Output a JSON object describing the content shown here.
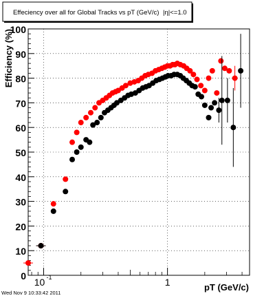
{
  "chart_data": {
    "type": "scatter",
    "title": "Effeciency over all for Global Tracks vs pT (GeV/c)",
    "title_suffix": "|η|<=1.0",
    "xlabel": "pT (GeV/c)",
    "ylabel": "Efficiency (%)",
    "x_scale": "log",
    "xlim": [
      0.075,
      4.6
    ],
    "ylim": [
      0,
      100
    ],
    "grid": true,
    "y_ticks": [
      {
        "v": 0,
        "label": "0"
      },
      {
        "v": 10,
        "label": "10"
      },
      {
        "v": 20,
        "label": "20"
      },
      {
        "v": 30,
        "label": "30"
      },
      {
        "v": 40,
        "label": "40"
      },
      {
        "v": 50,
        "label": "50"
      },
      {
        "v": 60,
        "label": "60"
      },
      {
        "v": 70,
        "label": "70"
      },
      {
        "v": 80,
        "label": "80"
      },
      {
        "v": 90,
        "label": "90"
      },
      {
        "v": 100,
        "label": "100"
      }
    ],
    "x_tick_labels": [
      {
        "v": 0.1,
        "base": "10",
        "exp": "-1"
      },
      {
        "v": 1,
        "base": "1",
        "exp": ""
      }
    ],
    "series": [
      {
        "color": "#ff0000",
        "points": [
          [
            0.075,
            5
          ],
          [
            0.095,
            12
          ],
          [
            0.12,
            29
          ],
          [
            0.15,
            39
          ],
          [
            0.17,
            54
          ],
          [
            0.185,
            58
          ],
          [
            0.2,
            62
          ],
          [
            0.22,
            64
          ],
          [
            0.24,
            66
          ],
          [
            0.26,
            68
          ],
          [
            0.28,
            70
          ],
          [
            0.3,
            71
          ],
          [
            0.32,
            72
          ],
          [
            0.34,
            73
          ],
          [
            0.36,
            74
          ],
          [
            0.38,
            74.5
          ],
          [
            0.4,
            75
          ],
          [
            0.43,
            76
          ],
          [
            0.46,
            77
          ],
          [
            0.5,
            78
          ],
          [
            0.54,
            78.5
          ],
          [
            0.58,
            79
          ],
          [
            0.62,
            80
          ],
          [
            0.66,
            81
          ],
          [
            0.7,
            81.5
          ],
          [
            0.75,
            82
          ],
          [
            0.8,
            83
          ],
          [
            0.85,
            83.5
          ],
          [
            0.9,
            84
          ],
          [
            0.95,
            84.5
          ],
          [
            1.0,
            85
          ],
          [
            1.05,
            85
          ],
          [
            1.1,
            85.5
          ],
          [
            1.15,
            85.5
          ],
          [
            1.2,
            86
          ],
          [
            1.27,
            85.5
          ],
          [
            1.35,
            85
          ],
          [
            1.43,
            84
          ],
          [
            1.52,
            83
          ],
          [
            1.62,
            81.5
          ],
          [
            1.73,
            79.5
          ],
          [
            1.86,
            77
          ],
          [
            2.0,
            75
          ],
          [
            2.15,
            80
          ],
          [
            2.3,
            83
          ],
          [
            2.5,
            74
          ],
          [
            2.7,
            87
          ],
          [
            2.9,
            84
          ],
          [
            3.15,
            83
          ],
          [
            3.5,
            80
          ]
        ],
        "errors": [
          [
            3.5,
            5
          ]
        ]
      },
      {
        "color": "#000000",
        "points": [
          [
            0.095,
            12
          ],
          [
            0.12,
            26
          ],
          [
            0.15,
            34
          ],
          [
            0.17,
            47
          ],
          [
            0.185,
            50
          ],
          [
            0.2,
            52
          ],
          [
            0.22,
            55
          ],
          [
            0.235,
            54
          ],
          [
            0.25,
            61
          ],
          [
            0.27,
            62
          ],
          [
            0.29,
            64
          ],
          [
            0.31,
            66
          ],
          [
            0.33,
            67
          ],
          [
            0.35,
            68
          ],
          [
            0.37,
            69
          ],
          [
            0.39,
            70
          ],
          [
            0.42,
            71
          ],
          [
            0.45,
            72
          ],
          [
            0.48,
            73
          ],
          [
            0.51,
            73.5
          ],
          [
            0.55,
            74
          ],
          [
            0.59,
            75
          ],
          [
            0.63,
            76
          ],
          [
            0.67,
            76.5
          ],
          [
            0.71,
            77
          ],
          [
            0.76,
            78
          ],
          [
            0.81,
            79
          ],
          [
            0.86,
            79.5
          ],
          [
            0.91,
            80
          ],
          [
            0.96,
            80.5
          ],
          [
            1.01,
            81
          ],
          [
            1.07,
            81
          ],
          [
            1.13,
            81.5
          ],
          [
            1.2,
            81.5
          ],
          [
            1.27,
            81
          ],
          [
            1.34,
            80
          ],
          [
            1.42,
            79
          ],
          [
            1.5,
            78
          ],
          [
            1.58,
            77
          ],
          [
            1.67,
            76.5
          ],
          [
            1.77,
            73.5
          ],
          [
            1.88,
            72.5
          ],
          [
            2.0,
            69
          ],
          [
            2.15,
            64
          ],
          [
            2.25,
            68
          ],
          [
            2.4,
            70
          ],
          [
            2.6,
            67
          ],
          [
            2.75,
            71
          ],
          [
            3.05,
            71
          ],
          [
            3.4,
            60
          ],
          [
            3.9,
            83
          ]
        ],
        "errors": [
          [
            2.6,
            5
          ],
          [
            2.75,
            18
          ],
          [
            3.05,
            9
          ],
          [
            3.4,
            16
          ],
          [
            3.9,
            15
          ]
        ]
      }
    ]
  },
  "timestamp": "Wed Nov  9 10:33:42 2011"
}
